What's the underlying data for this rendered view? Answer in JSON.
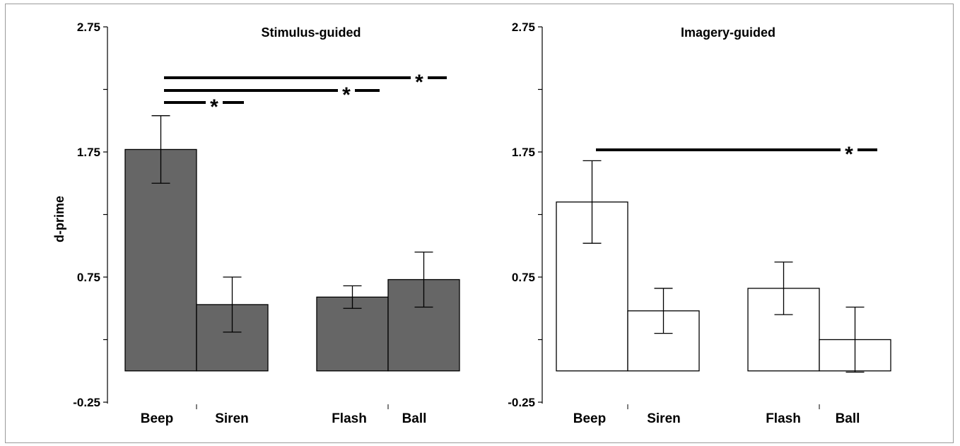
{
  "chart_data": [
    {
      "type": "bar",
      "title": "Stimulus-guided",
      "xlabel": "",
      "ylabel": "d-prime",
      "ylim": [
        -0.25,
        2.75
      ],
      "yticks": [
        "2.75",
        "1.75",
        "0.75",
        "-0.25"
      ],
      "categories": [
        "Beep",
        "Siren",
        "Flash",
        "Ball"
      ],
      "values": [
        1.77,
        0.53,
        0.59,
        0.73
      ],
      "errors": [
        0.27,
        0.22,
        0.09,
        0.22
      ],
      "bar_color": "#666666",
      "significance": [
        {
          "from": "Beep",
          "to": "Siren",
          "label": "*"
        },
        {
          "from": "Beep",
          "to": "Flash",
          "label": "*"
        },
        {
          "from": "Beep",
          "to": "Ball",
          "label": "*"
        }
      ]
    },
    {
      "type": "bar",
      "title": "Imagery-guided",
      "xlabel": "",
      "ylabel": "",
      "ylim": [
        -0.25,
        2.75
      ],
      "yticks": [
        "2.75",
        "1.75",
        "0.75",
        "-0.25"
      ],
      "categories": [
        "Beep",
        "Siren",
        "Flash",
        "Ball"
      ],
      "values": [
        1.35,
        0.48,
        0.66,
        0.25
      ],
      "errors": [
        0.33,
        0.18,
        0.21,
        0.26
      ],
      "bar_color": "#ffffff",
      "significance": [
        {
          "from": "Beep",
          "to": "Ball",
          "label": "*"
        }
      ]
    }
  ]
}
